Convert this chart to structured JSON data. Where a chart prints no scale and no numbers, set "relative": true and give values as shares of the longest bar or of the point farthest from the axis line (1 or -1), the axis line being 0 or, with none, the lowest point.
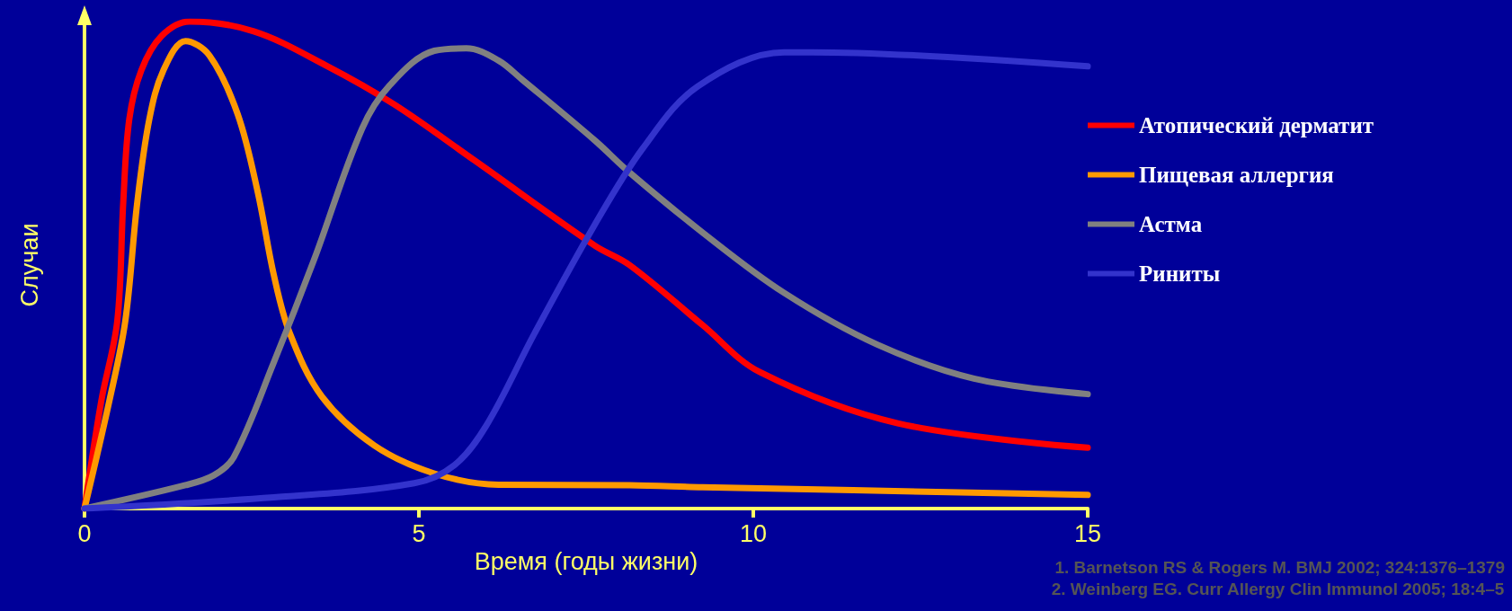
{
  "chart_data": {
    "type": "line",
    "relative": true,
    "xlabel": "Время (годы жизни)",
    "ylabel": "Случаи",
    "xlim": [
      0,
      15
    ],
    "xticks": [
      0,
      5,
      10,
      15
    ],
    "grid": false,
    "legend": "right",
    "marker": "none",
    "line_style": "solid",
    "tick_labels": "x",
    "annotations": [
      "1. Barnetson RS & Rogers M. BMJ 2002; 324:1376–1379",
      "2. Weinberg EG. Curr Allergy Clin Immunol 2005; 18:4–5"
    ],
    "series": [
      {
        "name": "Атопический дерматит",
        "color": "#ff0000",
        "x": [
          0,
          0.25,
          0.49,
          0.58,
          0.67,
          0.85,
          1.15,
          1.57,
          2.53,
          3.61,
          4.63,
          5.83,
          7.63,
          8.15,
          9.24,
          10.1,
          12.16,
          15
        ],
        "values": [
          0,
          0.22,
          0.385,
          0.63,
          0.8,
          0.9,
          0.97,
          1,
          0.98,
          0.91,
          0.83,
          0.715,
          0.54,
          0.5,
          0.377,
          0.28,
          0.175,
          0.125
        ]
      },
      {
        "name": "Пищевая аллергия",
        "color": "#ff9900",
        "x": [
          0,
          0.37,
          0.61,
          0.79,
          0.97,
          1.18,
          1.51,
          1.87,
          2.29,
          2.59,
          2.83,
          3.07,
          3.55,
          4.33,
          5.23,
          6.19,
          8.15,
          9.24,
          15
        ],
        "values": [
          0,
          0.22,
          0.385,
          0.63,
          0.8,
          0.9,
          0.96,
          0.93,
          0.81,
          0.65,
          0.48,
          0.36,
          0.23,
          0.13,
          0.072,
          0.049,
          0.048,
          0.044,
          0.028
        ]
      },
      {
        "name": "Астма",
        "color": "#808080",
        "x": [
          0,
          1.51,
          1.93,
          2.23,
          2.83,
          3.43,
          4.15,
          4.57,
          5.23,
          5.71,
          6.19,
          6.55,
          7.63,
          8.15,
          9.24,
          10.46,
          11.85,
          13.3,
          15
        ],
        "values": [
          0,
          0.048,
          0.068,
          0.105,
          0.3,
          0.51,
          0.78,
          0.87,
          0.94,
          0.945,
          0.92,
          0.88,
          0.756,
          0.69,
          0.567,
          0.443,
          0.337,
          0.267,
          0.235
        ]
      },
      {
        "name": "Риниты",
        "color": "#3333cc",
        "x": [
          0,
          2.83,
          4.93,
          5.53,
          6.01,
          6.73,
          7.63,
          8.35,
          9.17,
          10.46,
          10.87,
          15
        ],
        "values": [
          0,
          0.023,
          0.052,
          0.089,
          0.171,
          0.36,
          0.583,
          0.74,
          0.867,
          0.937,
          0.937,
          0.908
        ]
      }
    ]
  }
}
